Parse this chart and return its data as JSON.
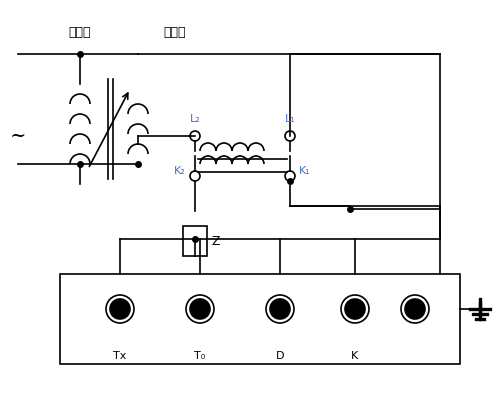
{
  "bg_color": "#ffffff",
  "line_color": "#000000",
  "label_color": "#4472c4",
  "title": "",
  "fig_width": 4.96,
  "fig_height": 3.94,
  "dpi": 100,
  "labels": {
    "tiaoya": "调压器",
    "shenglia": "升流器",
    "L2": "L₂",
    "L1": "L₁",
    "K2": "K₂",
    "K1": "K₁",
    "Z": "Z",
    "Tx": "Tx",
    "T0": "T₀",
    "D": "D",
    "K": "K"
  }
}
